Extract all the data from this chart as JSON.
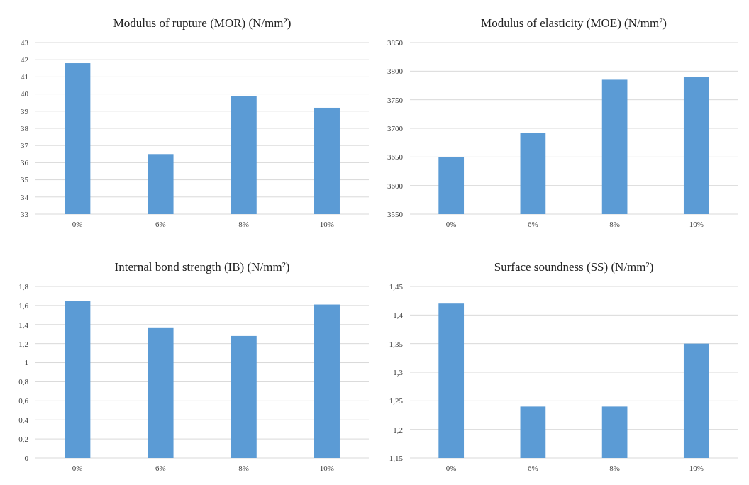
{
  "chart_data": [
    {
      "type": "bar",
      "title": "Modulus of rupture (MOR) (N/mm²)",
      "categories": [
        "0%",
        "6%",
        "8%",
        "10%"
      ],
      "values": [
        41.8,
        36.5,
        39.9,
        39.2
      ],
      "color": "#5b9bd5",
      "ylim": [
        33,
        43
      ],
      "yticks": [
        33,
        34,
        35,
        36,
        37,
        38,
        39,
        40,
        41,
        42,
        43
      ],
      "grid": "y"
    },
    {
      "type": "bar",
      "title": "Modulus of elasticity (MOE) (N/mm²)",
      "categories": [
        "0%",
        "6%",
        "8%",
        "10%"
      ],
      "values": [
        3650,
        3692,
        3785,
        3790
      ],
      "color": "#5b9bd5",
      "ylim": [
        3550,
        3850
      ],
      "yticks": [
        3550,
        3600,
        3650,
        3700,
        3750,
        3800,
        3850
      ],
      "grid": "y"
    },
    {
      "type": "bar",
      "title": "Internal bond strength (IB) (N/mm²)",
      "categories": [
        "0%",
        "6%",
        "8%",
        "10%"
      ],
      "values": [
        1.65,
        1.37,
        1.28,
        1.61
      ],
      "color": "#5b9bd5",
      "ylim": [
        0,
        1.8
      ],
      "yticks": [
        0,
        {
          "value": 0.2,
          "label": "0,2"
        },
        {
          "value": 0.4,
          "label": "0,4"
        },
        {
          "value": 0.6,
          "label": "0,6"
        },
        {
          "value": 0.8,
          "label": "0,8"
        },
        1,
        {
          "value": 1.2,
          "label": "1,2"
        },
        {
          "value": 1.4,
          "label": "1,4"
        },
        {
          "value": 1.6,
          "label": "1,6"
        },
        {
          "value": 1.8,
          "label": "1,8"
        }
      ],
      "grid": "y"
    },
    {
      "type": "bar",
      "title": "Surface soundness (SS) (N/mm²)",
      "categories": [
        "0%",
        "6%",
        "8%",
        "10%"
      ],
      "values": [
        1.42,
        1.24,
        1.24,
        1.35
      ],
      "color": "#5b9bd5",
      "ylim": [
        1.15,
        1.45
      ],
      "yticks": [
        {
          "value": 1.15,
          "label": "1,15"
        },
        {
          "value": 1.2,
          "label": "1,2"
        },
        {
          "value": 1.25,
          "label": "1,25"
        },
        {
          "value": 1.3,
          "label": "1,3"
        },
        {
          "value": 1.35,
          "label": "1,35"
        },
        {
          "value": 1.4,
          "label": "1,4"
        },
        {
          "value": 1.45,
          "label": "1,45"
        }
      ],
      "grid": "y"
    }
  ]
}
